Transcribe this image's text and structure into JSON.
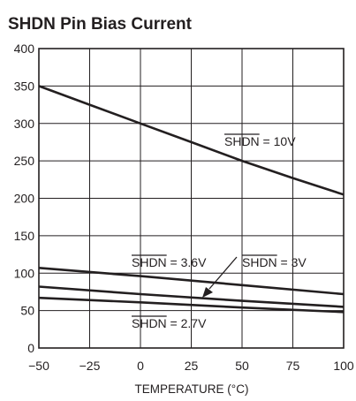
{
  "chart_data": {
    "type": "line",
    "title": "SHDN Pin Bias Current",
    "xlabel": "TEMPERATURE (°C)",
    "ylabel": "",
    "xlim": [
      -50,
      100
    ],
    "ylim": [
      0,
      400
    ],
    "xticks": [
      -50,
      -25,
      0,
      25,
      50,
      75,
      100
    ],
    "yticks": [
      0,
      50,
      100,
      150,
      200,
      250,
      300,
      350,
      400
    ],
    "xtick_labels": [
      "−50",
      "−25",
      "0",
      "25",
      "50",
      "75",
      "100"
    ],
    "ytick_labels": [
      "0",
      "50",
      "100",
      "150",
      "200",
      "250",
      "300",
      "350",
      "400"
    ],
    "grid": true,
    "series": [
      {
        "name": "SHDN = 10V",
        "x": [
          -50,
          -25,
          0,
          25,
          50,
          75,
          100
        ],
        "y": [
          350,
          325,
          300,
          275,
          250,
          227,
          205
        ]
      },
      {
        "name": "SHDN = 3.6V",
        "x": [
          -50,
          0,
          50,
          100
        ],
        "y": [
          107,
          96,
          84,
          72
        ]
      },
      {
        "name": "SHDN = 3V",
        "x": [
          -50,
          0,
          50,
          100
        ],
        "y": [
          82,
          72,
          63,
          55
        ]
      },
      {
        "name": "SHDN = 2.7V",
        "x": [
          -50,
          0,
          50,
          100
        ],
        "y": [
          67,
          61,
          54,
          48
        ]
      }
    ],
    "annotations": [
      {
        "series": "SHDN = 10V",
        "bar": "SHDN",
        "rest": " = 10V"
      },
      {
        "series": "SHDN = 3.6V",
        "bar": "SHDN",
        "rest": " = 3.6V"
      },
      {
        "series": "SHDN = 3V",
        "bar": "SHDN",
        "rest": " = 3V"
      },
      {
        "series": "SHDN = 2.7V",
        "bar": "SHDN",
        "rest": " = 2.7V"
      }
    ],
    "colors": {
      "line": "#231f20",
      "grid": "#231f20",
      "background": "#ffffff"
    }
  }
}
